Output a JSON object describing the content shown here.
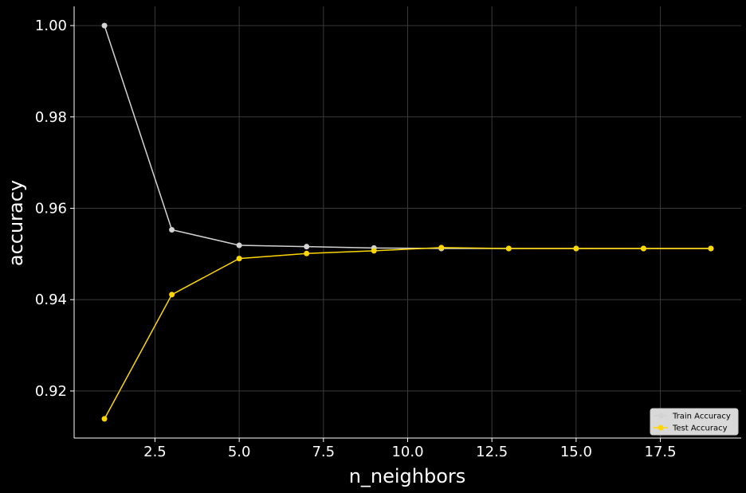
{
  "chart_data": {
    "type": "line",
    "title": "",
    "xlabel": "n_neighbors",
    "ylabel": "accuracy",
    "xlim": [
      0.1,
      19.9
    ],
    "ylim": [
      0.9097,
      1.0042
    ],
    "xticks": [
      2.5,
      5.0,
      7.5,
      10.0,
      12.5,
      15.0,
      17.5
    ],
    "xtick_labels": [
      "2.5",
      "5.0",
      "7.5",
      "10.0",
      "12.5",
      "15.0",
      "17.5"
    ],
    "yticks": [
      0.92,
      0.94,
      0.96,
      0.98,
      1.0
    ],
    "ytick_labels": [
      "0.92",
      "0.94",
      "0.96",
      "0.98",
      "1.00"
    ],
    "grid": true,
    "legend_position": "bottom-right",
    "x": [
      1,
      3,
      5,
      7,
      9,
      11,
      13,
      15,
      17,
      19
    ],
    "series": [
      {
        "name": "Train Accuracy",
        "color": "#d3d3d3",
        "values": [
          1.0,
          0.9553,
          0.9519,
          0.9516,
          0.9513,
          0.9512,
          0.9512,
          0.9512,
          0.9512,
          0.9512
        ]
      },
      {
        "name": "Test Accuracy",
        "color": "#ffd700",
        "values": [
          0.9139,
          0.9411,
          0.949,
          0.9501,
          0.9507,
          0.9514,
          0.9512,
          0.9512,
          0.9512,
          0.9512
        ]
      }
    ]
  }
}
